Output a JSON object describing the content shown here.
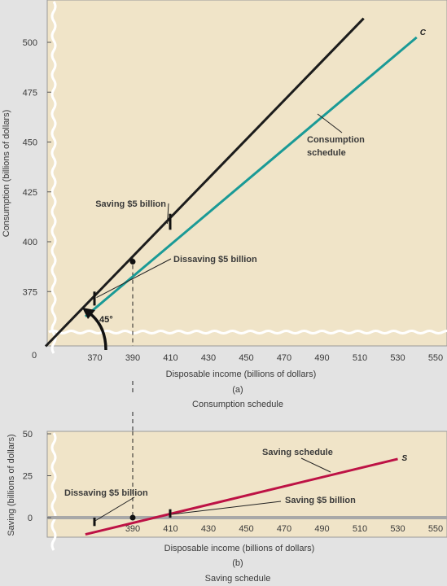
{
  "colors": {
    "page_bg": "#e3e3e3",
    "panel_bg": "#f0e4c8",
    "panel_border": "#9a9a9a",
    "forty_five_line": "#1c1c1c",
    "consumption_line": "#1a9a96",
    "saving_line": "#bd1245",
    "zero_line": "#a8a8a8",
    "text": "#3a3a3a"
  },
  "chart_data": [
    {
      "type": "line",
      "panel": "a",
      "ylabel": "Consumption (billions of dollars)",
      "xlabel": "Disposable income (billions of dollars)",
      "panel_letter": "(a)",
      "caption": "Consumption schedule",
      "origin_label": "0",
      "x_ticks": [
        370,
        390,
        410,
        430,
        450,
        470,
        490,
        510,
        530,
        550
      ],
      "y_ticks": [
        375,
        400,
        425,
        450,
        475,
        500
      ],
      "xlim": [
        350,
        550
      ],
      "ylim": [
        350,
        515
      ],
      "axis_breaks": true,
      "series": [
        {
          "label": "",
          "color": "forty_five_line",
          "x": [
            350,
            512
          ],
          "y": [
            350,
            512
          ]
        },
        {
          "label": "C",
          "color": "consumption_line",
          "x": [
            365,
            540
          ],
          "y": [
            362.5,
            502.5
          ]
        }
      ],
      "annotations": {
        "consumption_schedule": [
          "Consumption",
          "schedule"
        ],
        "saving_5": "Saving $5 billion",
        "dissaving_5": "Dissaving $5 billion",
        "angle": "45°",
        "curve_label": "C"
      }
    },
    {
      "type": "line",
      "panel": "b",
      "ylabel": "Saving (billions of dollars)",
      "xlabel": "Disposable income (billions of dollars)",
      "panel_letter": "(b)",
      "caption": "Saving schedule",
      "x_ticks": [
        390,
        410,
        430,
        450,
        470,
        490,
        510,
        530,
        550
      ],
      "y_ticks": [
        0,
        25,
        50
      ],
      "xlim": [
        350,
        550
      ],
      "ylim": [
        -12,
        50
      ],
      "series": [
        {
          "label": "S",
          "color": "saving_line",
          "x": [
            365,
            530
          ],
          "y": [
            -10,
            35
          ]
        }
      ],
      "annotations": {
        "saving_schedule": "Saving schedule",
        "saving_5": "Saving $5 billion",
        "dissaving_5": "Dissaving $5 billion",
        "curve_label": "S"
      }
    }
  ]
}
